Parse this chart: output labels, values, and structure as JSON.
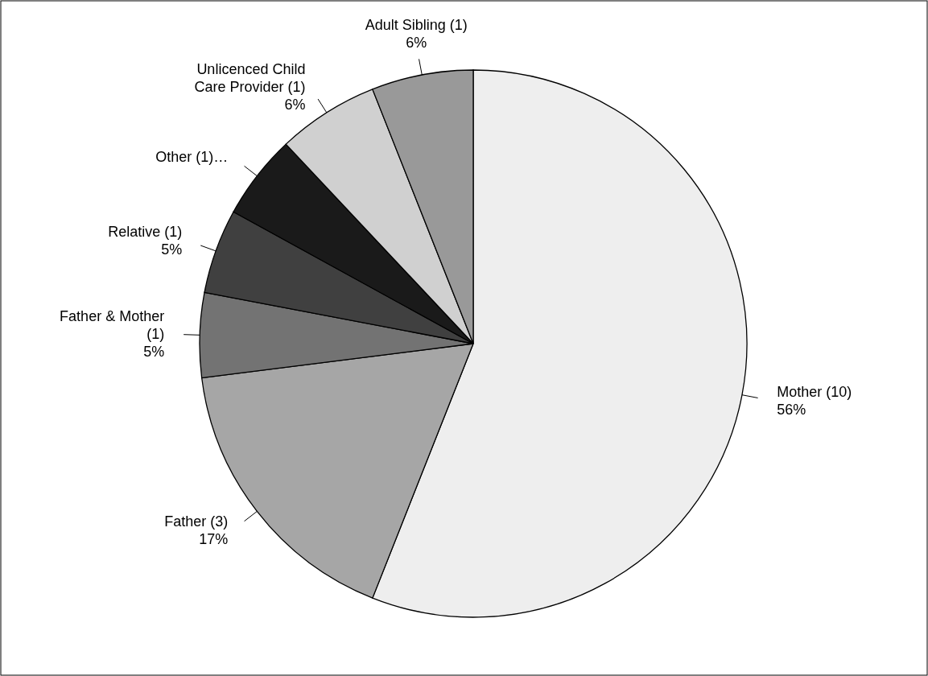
{
  "chart_data": {
    "type": "pie",
    "categories": [
      "Mother (10)",
      "Father (3)",
      "Father & Mother (1)",
      "Relative (1)",
      "Other (1)…",
      "Unlicenced Child Care Provider (1)",
      "Adult Sibling (1)"
    ],
    "values": [
      56,
      17,
      5,
      5,
      5,
      6,
      6
    ],
    "value_labels": [
      "56%",
      "17%",
      "5%",
      "5%",
      null,
      "6%",
      "6%"
    ],
    "colors": [
      "#eeeeee",
      "#a6a6a6",
      "#737373",
      "#404040",
      "#1a1a1a",
      "#d0d0d0",
      "#999999"
    ]
  }
}
